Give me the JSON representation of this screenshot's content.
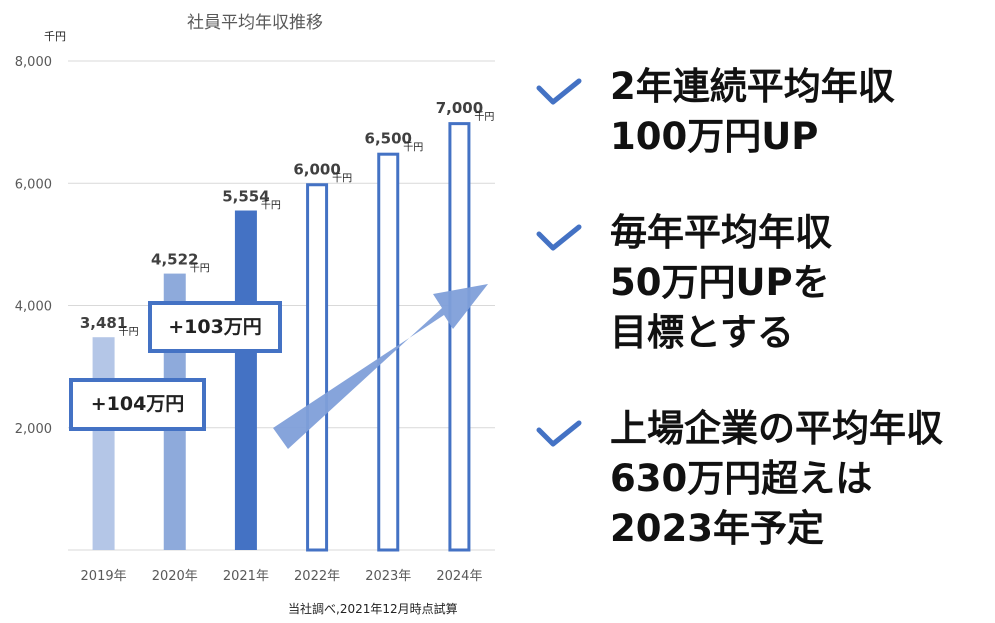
{
  "chart_data": {
    "type": "bar",
    "title": "社員平均年収推移",
    "unit_label": "千円",
    "categories": [
      "2019年",
      "2020年",
      "2021年",
      "2022年",
      "2023年",
      "2024年"
    ],
    "values": [
      3481,
      4522,
      5554,
      6000,
      6500,
      7000
    ],
    "value_labels": [
      "3,481",
      "4,522",
      "5,554",
      "6,000",
      "6,500",
      "7,000"
    ],
    "value_unit": "千円",
    "ylim": [
      0,
      8000
    ],
    "yticks": [
      2000,
      4000,
      6000,
      8000
    ],
    "ytick_labels": [
      "2,000",
      "4,000",
      "6,000",
      "8,000"
    ],
    "grid": true,
    "bar_styles": [
      "filled",
      "filled",
      "filled",
      "outline",
      "outline",
      "outline"
    ],
    "bar_colors": [
      "#b4c6e7",
      "#8eaadb",
      "#4472c4",
      "#4472c4",
      "#4472c4",
      "#4472c4"
    ],
    "annotations": [
      "+104万円",
      "+103万円"
    ],
    "source": "当社調べ,2021年12月時点試算"
  },
  "points": [
    {
      "lines": [
        "2年連続平均年収",
        "100万円UP"
      ]
    },
    {
      "lines": [
        "毎年平均年収",
        "50万円UPを",
        "目標とする"
      ]
    },
    {
      "lines": [
        "上場企業の平均年収",
        "630万円超えは",
        "2023年予定"
      ]
    }
  ],
  "colors": {
    "accent": "#4472c4",
    "arrow": "#7f9fd9"
  }
}
